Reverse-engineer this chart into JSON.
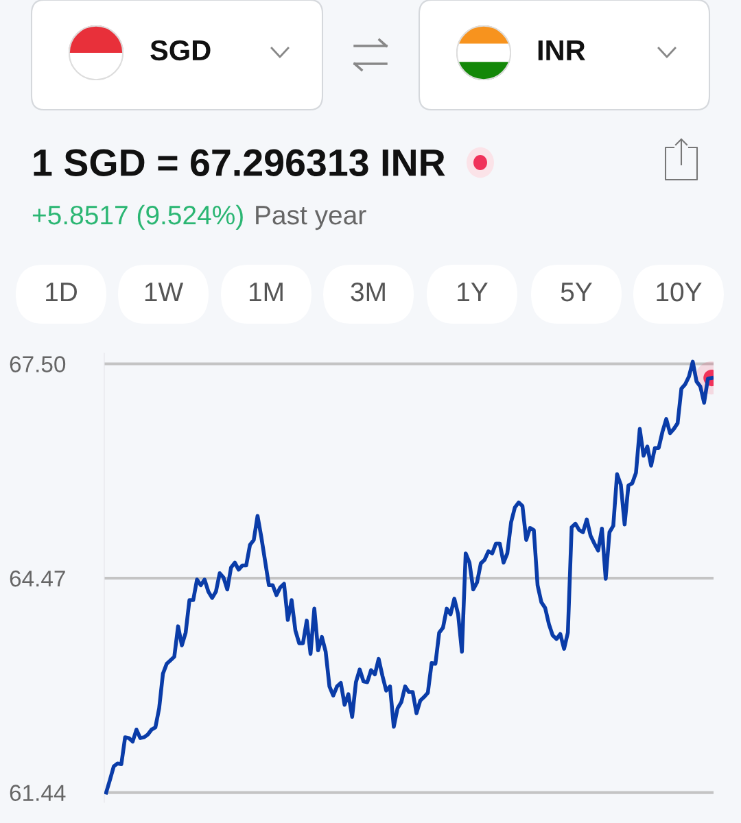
{
  "chart_data": {
    "type": "line",
    "title": "1 SGD = 67.296313 INR",
    "subtitle": "+5.8517 (9.524%)",
    "annotations": [
      "Past year",
      "SGD",
      "INR",
      "1D",
      "1W",
      "1M",
      "3M",
      "1Y",
      "5Y",
      "10Y"
    ],
    "categories": [
      null,
      null,
      null,
      null,
      null,
      null,
      null,
      null,
      null,
      null,
      null,
      null,
      null,
      null,
      null,
      null,
      null,
      null,
      null,
      null,
      null,
      null,
      null,
      null,
      null,
      null,
      null,
      null,
      null,
      null,
      null,
      null,
      null,
      null,
      null,
      null,
      null,
      null,
      null,
      null,
      null,
      null,
      null,
      null,
      null,
      null,
      null,
      null,
      null,
      null,
      null,
      null,
      null,
      null,
      null,
      null,
      null,
      null,
      null,
      null,
      null,
      null,
      null,
      null,
      null,
      null,
      null,
      null,
      null,
      null,
      null,
      null,
      null,
      null,
      null,
      null,
      null,
      null,
      null,
      null,
      null,
      null,
      null,
      null,
      null,
      null,
      null,
      null,
      null,
      null,
      null,
      null,
      null,
      null,
      null,
      null,
      null,
      null,
      null,
      null,
      null,
      null,
      null,
      null,
      null,
      null,
      null,
      null,
      null,
      null,
      null,
      null,
      null,
      null,
      null,
      null,
      null,
      null,
      null,
      null,
      null,
      null,
      null,
      null,
      null,
      null,
      null,
      null,
      null,
      null,
      null,
      null,
      null,
      null,
      null,
      null,
      null,
      null,
      null,
      null,
      null,
      null,
      null,
      null,
      null,
      null,
      null,
      null,
      null,
      null,
      null,
      null,
      null,
      null,
      null,
      null,
      null,
      null,
      null,
      null,
      null
    ],
    "series": [
      {
        "color": "#0a3ca8",
        "marker": "none",
        "values": [
          61.44,
          61.62,
          61.81,
          61.85,
          61.84,
          62.22,
          62.21,
          62.16,
          62.33,
          62.21,
          62.22,
          62.26,
          62.33,
          62.36,
          62.63,
          63.12,
          63.26,
          63.31,
          63.36,
          63.79,
          63.52,
          63.7,
          64.16,
          64.16,
          64.45,
          64.37,
          64.45,
          64.28,
          64.19,
          64.28,
          64.54,
          64.48,
          64.31,
          64.62,
          64.69,
          64.59,
          64.65,
          64.65,
          64.94,
          65.01,
          65.35,
          65.05,
          64.71,
          64.37,
          64.37,
          64.23,
          64.34,
          64.39,
          63.88,
          64.16,
          63.73,
          63.55,
          63.55,
          63.87,
          63.4,
          64.04,
          63.45,
          63.64,
          63.43,
          62.94,
          62.81,
          62.94,
          62.99,
          62.68,
          62.83,
          62.51,
          63.0,
          63.18,
          63.01,
          63.0,
          63.17,
          63.11,
          63.33,
          63.09,
          62.88,
          62.94,
          62.37,
          62.63,
          62.72,
          62.94,
          62.86,
          62.86,
          62.56,
          62.74,
          62.79,
          62.85,
          63.27,
          63.26,
          63.7,
          63.77,
          64.04,
          63.96,
          64.18,
          63.96,
          63.43,
          64.82,
          64.69,
          64.31,
          64.41,
          64.68,
          64.73,
          64.85,
          64.82,
          64.96,
          64.96,
          64.69,
          64.82,
          65.26,
          65.47,
          65.54,
          65.49,
          65.01,
          65.18,
          65.15,
          64.37,
          64.13,
          64.05,
          63.82,
          63.66,
          63.61,
          63.68,
          63.47,
          63.7,
          65.19,
          65.24,
          65.15,
          65.12,
          65.3,
          65.07,
          64.96,
          64.86,
          65.17,
          64.46,
          65.12,
          65.21,
          65.94,
          65.79,
          65.23,
          65.78,
          65.81,
          65.96,
          66.58,
          66.2,
          66.33,
          66.06,
          66.31,
          66.31,
          66.54,
          66.72,
          66.52,
          66.58,
          66.66,
          67.15,
          67.21,
          67.32,
          67.53,
          67.25,
          67.18,
          66.95,
          67.29,
          67.3
        ]
      },
      {
        "type": "scatter",
        "color": "#f0325a",
        "marker": "circle",
        "values": [
          null,
          null,
          null,
          null,
          null,
          null,
          null,
          null,
          null,
          null,
          null,
          null,
          null,
          null,
          null,
          null,
          null,
          null,
          null,
          null,
          null,
          null,
          null,
          null,
          null,
          null,
          null,
          null,
          null,
          null,
          null,
          null,
          null,
          null,
          null,
          null,
          null,
          null,
          null,
          null,
          null,
          null,
          null,
          null,
          null,
          null,
          null,
          null,
          null,
          null,
          null,
          null,
          null,
          null,
          null,
          null,
          null,
          null,
          null,
          null,
          null,
          null,
          null,
          null,
          null,
          null,
          null,
          null,
          null,
          null,
          null,
          null,
          null,
          null,
          null,
          null,
          null,
          null,
          null,
          null,
          null,
          null,
          null,
          null,
          null,
          null,
          null,
          null,
          null,
          null,
          null,
          null,
          null,
          null,
          null,
          null,
          null,
          null,
          null,
          null,
          null,
          null,
          null,
          null,
          null,
          null,
          null,
          null,
          null,
          null,
          null,
          null,
          null,
          null,
          null,
          null,
          null,
          null,
          null,
          null,
          null,
          null,
          null,
          null,
          null,
          null,
          null,
          null,
          null,
          null,
          null,
          null,
          null,
          null,
          null,
          null,
          null,
          null,
          null,
          null,
          null,
          null,
          null,
          null,
          null,
          null,
          null,
          null,
          null,
          null,
          null,
          null,
          null,
          null,
          null,
          null,
          null,
          null,
          null,
          null,
          67.3
        ]
      }
    ],
    "ylim": [
      61.3,
      67.65
    ],
    "yticks": [
      {
        "value": 61.44,
        "label": "61.44"
      },
      {
        "value": 64.47,
        "label": "64.47"
      },
      {
        "value": 67.5,
        "label": "67.50"
      }
    ],
    "grid": "y",
    "line_style": "solid",
    "legend": false
  }
}
